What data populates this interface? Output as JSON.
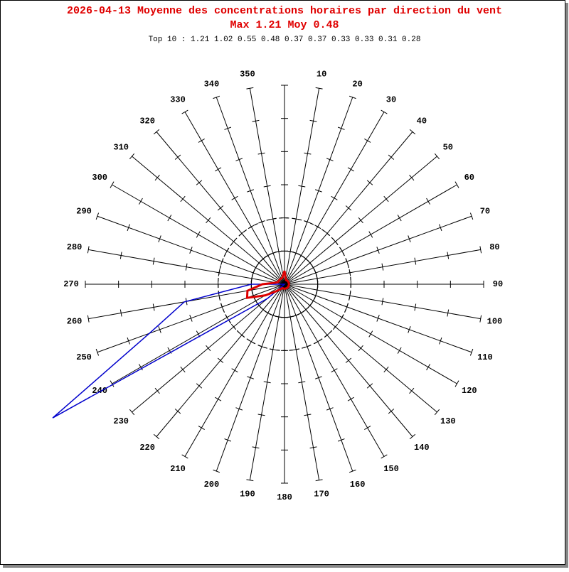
{
  "chart_data": {
    "type": "polar",
    "title": "2026-04-13 Moyenne des concentrations horaires par direction du vent",
    "subtitle": "Max 1.21 Moy 0.48",
    "caption": "Top 10 : 1.21 1.02 0.55 0.48 0.37 0.37 0.33 0.33 0.31 0.28",
    "categories": [
      "10",
      "20",
      "30",
      "40",
      "50",
      "60",
      "70",
      "80",
      "90",
      "100",
      "110",
      "120",
      "130",
      "140",
      "150",
      "160",
      "170",
      "180",
      "190",
      "200",
      "210",
      "220",
      "230",
      "240",
      "250",
      "260",
      "270",
      "280",
      "290",
      "300",
      "310",
      "320",
      "330",
      "340",
      "350",
      null
    ],
    "rlim": [
      0,
      0.9
    ],
    "rticks": [
      0.15,
      0.3,
      0.45,
      0.6,
      0.75,
      0.9
    ],
    "rings": [
      0.15,
      0.3
    ],
    "ring_styles": [
      "solid",
      "dashed"
    ],
    "series": [
      {
        "color": "#0000cc",
        "values": [
          0,
          0,
          0,
          0,
          0,
          0,
          0,
          0,
          0,
          0,
          0,
          0,
          0,
          0,
          0,
          0,
          0,
          0,
          0,
          0,
          0,
          0,
          0.1,
          1.21,
          0.65,
          0.46,
          0.15,
          0,
          0,
          0,
          0,
          0,
          0,
          0,
          0,
          0
        ]
      },
      {
        "color": "#dd0000",
        "values": [
          0.03,
          0.02,
          0.02,
          0.02,
          0.02,
          0.02,
          0.02,
          0.02,
          0.02,
          0.02,
          0.02,
          0.02,
          0.02,
          0.02,
          0.02,
          0.02,
          0.02,
          0.02,
          0.02,
          0.02,
          0.02,
          0.03,
          0.05,
          0.1,
          0.18,
          0.17,
          0.1,
          0.04,
          0.03,
          0.03,
          0.03,
          0.03,
          0.03,
          0.03,
          0.04,
          0.06
        ]
      }
    ]
  }
}
